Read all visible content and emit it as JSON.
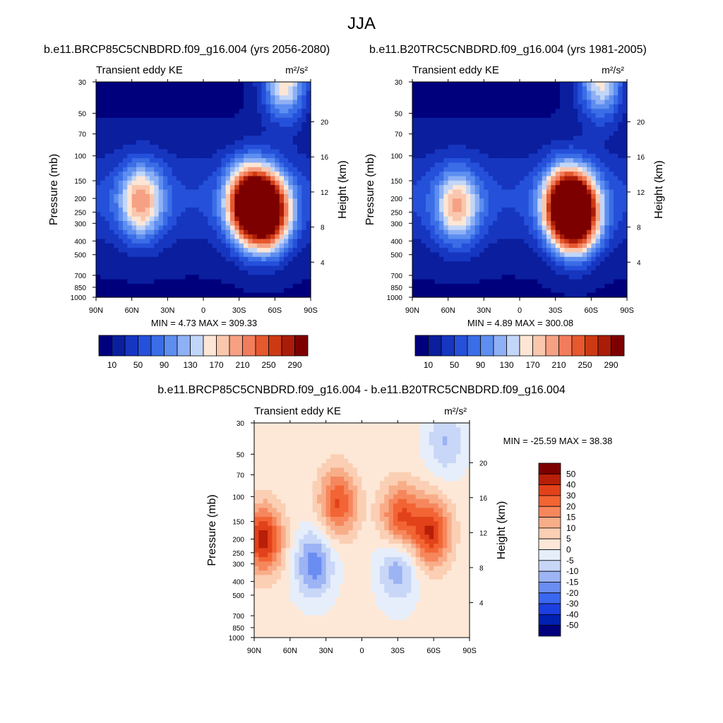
{
  "figure": {
    "title": "JJA",
    "panel_titles": [
      "b.e11.BRCP85C5CNBDRD.f09_g16.004 (yrs 2056-2080)",
      "b.e11.B20TRC5CNBDRD.f09_g16.004 (yrs 1981-2005)",
      "b.e11.BRCP85C5CNBDRD.f09_g16.004 - b.e11.B20TRC5CNBDRD.f09_g16.004"
    ]
  },
  "colors": {
    "full_field": [
      "#00007d",
      "#0a1e9e",
      "#1636c0",
      "#2550da",
      "#3a6de6",
      "#5d8ef0",
      "#8eb0f4",
      "#c2d6f8",
      "#fde6d5",
      "#f9c7ae",
      "#f6a183",
      "#f27d5c",
      "#e6582e",
      "#cc3a14",
      "#aa1c08",
      "#7d0000"
    ],
    "difference": [
      "#00007d",
      "#0020b0",
      "#1c3fe0",
      "#3b66f0",
      "#6a8df2",
      "#9cb3f4",
      "#c8d7f7",
      "#e6eefb",
      "#fde8d8",
      "#fbcfb4",
      "#f8ad89",
      "#f6875d",
      "#f36434",
      "#e2421a",
      "#b81f08",
      "#7d0000"
    ]
  },
  "chart_data": [
    {
      "type": "heatmap",
      "title": "Transient eddy KE",
      "units_label": "m²/s²",
      "ylabel": "Pressure (mb)",
      "ylabel_right": "Height (km)",
      "xticks": [
        "90N",
        "60N",
        "30N",
        "0",
        "30S",
        "60S",
        "90S"
      ],
      "yticks": [
        "30",
        "50",
        "70",
        "100",
        "150",
        "200",
        "250",
        "300",
        "400",
        "500",
        "700",
        "850",
        "1000"
      ],
      "yticks_right": [
        "20",
        "16",
        "12",
        "8",
        "4"
      ],
      "min_max_text": "MIN =   4.73  MAX = 309.33",
      "colorbar_labels": [
        "10",
        "50",
        "90",
        "130",
        "170",
        "210",
        "250",
        "290"
      ],
      "features": [
        {
          "lat": 52,
          "p": 210,
          "value": 170
        },
        {
          "lat": -38,
          "p": 220,
          "value": 309
        },
        {
          "lat": -55,
          "p": 250,
          "value": 290
        },
        {
          "lat": -68,
          "p": 30,
          "value": 170
        }
      ]
    },
    {
      "type": "heatmap",
      "title": "Transient eddy KE",
      "units_label": "m²/s²",
      "ylabel": "Pressure (mb)",
      "ylabel_right": "Height (km)",
      "xticks": [
        "90N",
        "60N",
        "30N",
        "0",
        "30S",
        "60S",
        "90S"
      ],
      "yticks": [
        "30",
        "50",
        "70",
        "100",
        "150",
        "200",
        "250",
        "300",
        "400",
        "500",
        "700",
        "850",
        "1000"
      ],
      "yticks_right": [
        "20",
        "16",
        "12",
        "8",
        "4"
      ],
      "min_max_text": "MIN =   4.89  MAX = 300.08",
      "colorbar_labels": [
        "10",
        "50",
        "90",
        "130",
        "170",
        "210",
        "250",
        "290"
      ],
      "features": [
        {
          "lat": 52,
          "p": 230,
          "value": 160
        },
        {
          "lat": -38,
          "p": 230,
          "value": 300
        },
        {
          "lat": -50,
          "p": 260,
          "value": 270
        },
        {
          "lat": -68,
          "p": 30,
          "value": 160
        }
      ]
    },
    {
      "type": "heatmap",
      "title": "Transient eddy KE",
      "units_label": "m²/s²",
      "ylabel": "Pressure (mb)",
      "ylabel_right": "Height (km)",
      "xticks": [
        "90N",
        "60N",
        "30N",
        "0",
        "30S",
        "60S",
        "90S"
      ],
      "yticks": [
        "30",
        "50",
        "70",
        "100",
        "150",
        "200",
        "250",
        "300",
        "400",
        "500",
        "700",
        "850",
        "1000"
      ],
      "yticks_right": [
        "20",
        "16",
        "12",
        "8",
        "4"
      ],
      "min_max_text": "MIN = -25.59  MAX =  38.38",
      "colorbar_labels": [
        "50",
        "40",
        "30",
        "20",
        "15",
        "10",
        "5",
        "0",
        "-5",
        "-10",
        "-15",
        "-20",
        "-30",
        "-40",
        "-50"
      ],
      "features": [
        {
          "lat": 82,
          "p": 200,
          "value": 38
        },
        {
          "lat": 20,
          "p": 110,
          "value": 30
        },
        {
          "lat": -32,
          "p": 140,
          "value": 30
        },
        {
          "lat": -58,
          "p": 180,
          "value": 35
        },
        {
          "lat": 40,
          "p": 300,
          "value": -25
        },
        {
          "lat": -30,
          "p": 320,
          "value": -20
        },
        {
          "lat": -70,
          "p": 40,
          "value": -15
        }
      ]
    }
  ]
}
